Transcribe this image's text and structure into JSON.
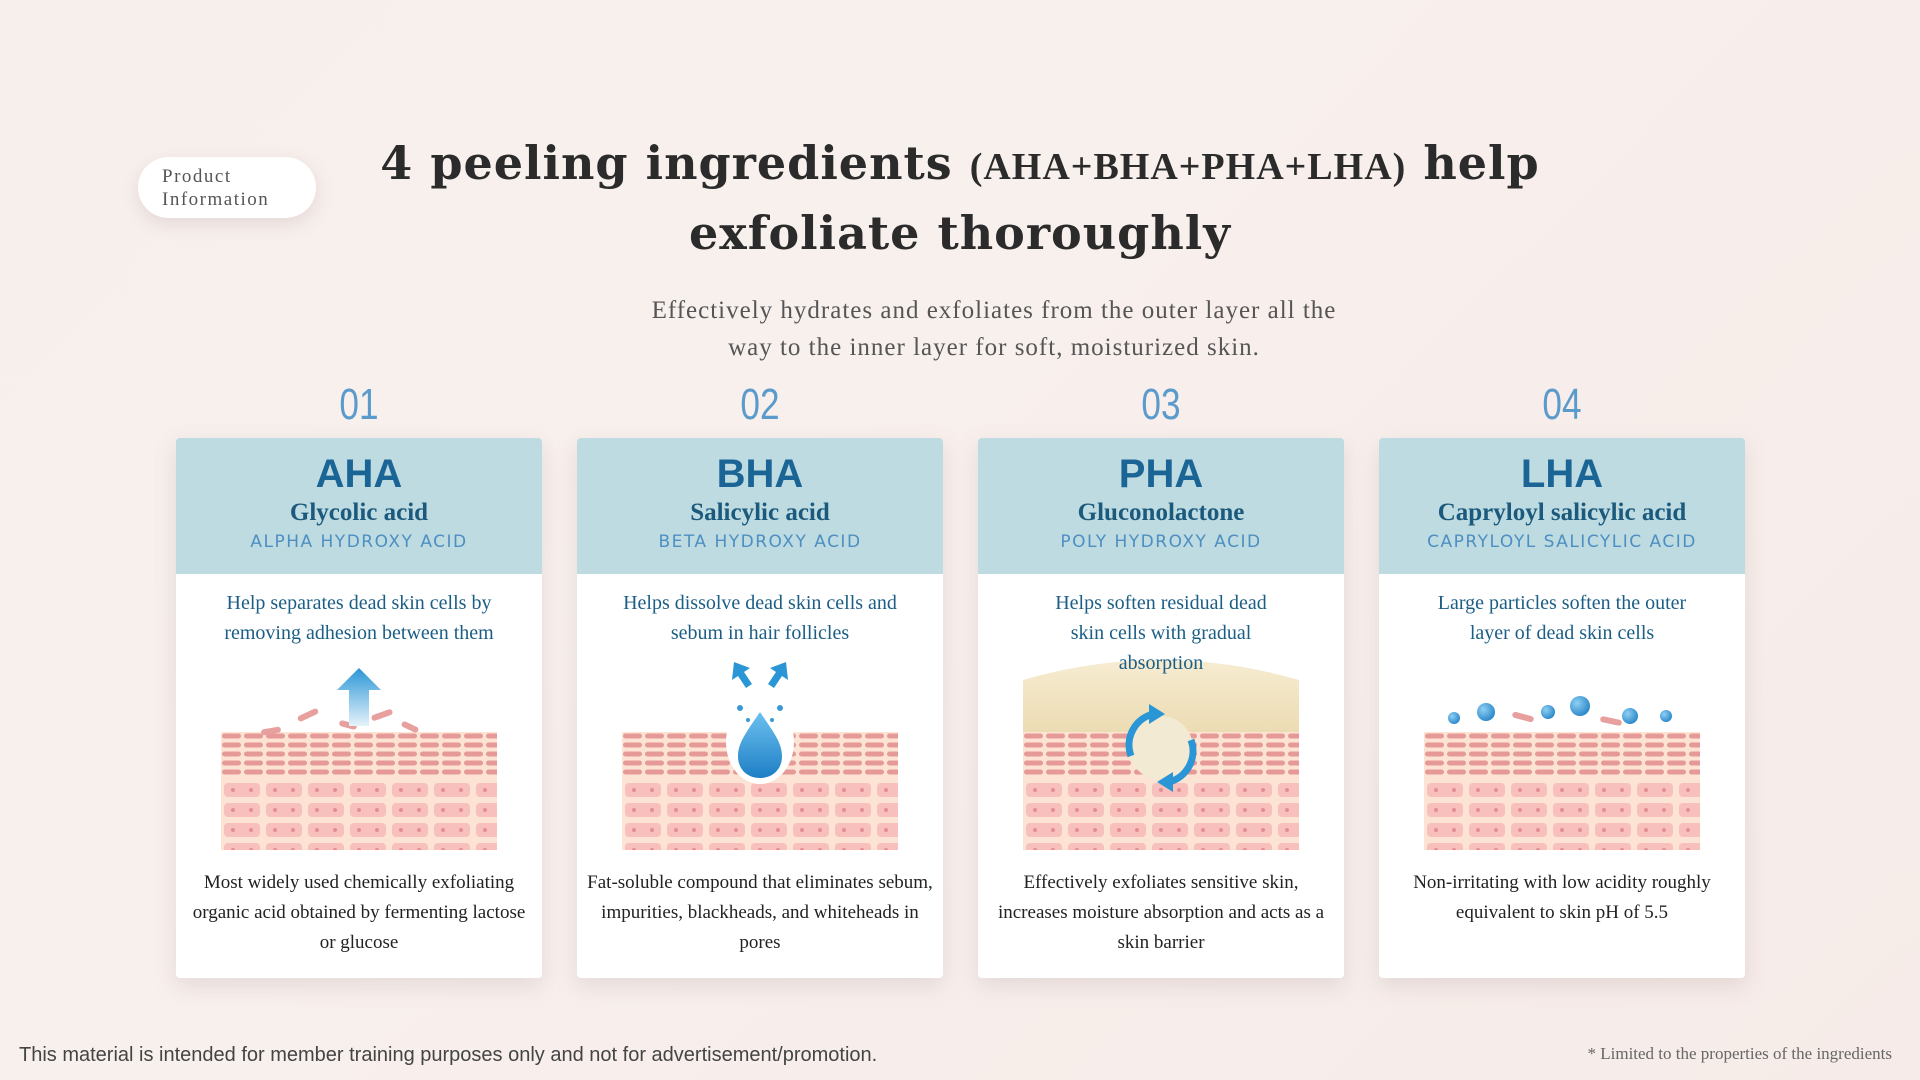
{
  "badge": {
    "line1": "Product",
    "line2": "Information"
  },
  "title": {
    "part1": "4 peeling ingredients ",
    "part2": "(AHA+BHA+PHA+LHA)",
    "part3": " help",
    "line2": "exfoliate thoroughly"
  },
  "subtitle": {
    "line1": "Effectively hydrates and exfoliates from the outer layer all the",
    "line2": "way to the inner layer for soft, moisturized skin."
  },
  "cards": [
    {
      "num": "01",
      "abbr": "AHA",
      "name": "Glycolic acid",
      "full": "ALPHA HYDROXY ACID",
      "desc": "Help separates dead skin cells by removing adhesion between them",
      "foot": "Most widely used chemically exfoliating organic acid obtained by fermenting lactose or glucose",
      "icon": "arrow-up-icon"
    },
    {
      "num": "02",
      "abbr": "BHA",
      "name": "Salicylic acid",
      "full": "BETA HYDROXY ACID",
      "desc": "Helps dissolve dead skin cells and sebum in hair follicles",
      "foot": "Fat-soluble compound that eliminates sebum, impurities, blackheads, and whiteheads in pores",
      "icon": "water-drop-icon"
    },
    {
      "num": "03",
      "abbr": "PHA",
      "name": "Gluconolactone",
      "full": "POLY HYDROXY ACID",
      "desc": "Helps soften residual dead skin cells with gradual absorption",
      "foot": "Effectively exfoliates sensitive skin, increases moisture absorption and acts as a skin barrier",
      "icon": "cycle-arrows-icon"
    },
    {
      "num": "04",
      "abbr": "LHA",
      "name": "Capryloyl salicylic acid",
      "full": "CAPRYLOYL SALICYLIC ACID",
      "desc": "Large particles soften the outer layer of dead skin cells",
      "foot": "Non-irritating with low acidity roughly equivalent to skin pH of 5.5",
      "icon": "particles-icon"
    }
  ],
  "footer": {
    "disclaimer": "This material is intended for member training purposes only and not for advertisement/promotion.",
    "note": "* Limited to the properties of the ingredients"
  },
  "colors": {
    "header_bg": "#bddbe0",
    "accent_blue": "#1b6496",
    "skin_pink": "#eaa5a0",
    "skin_base": "#fde3d3"
  }
}
